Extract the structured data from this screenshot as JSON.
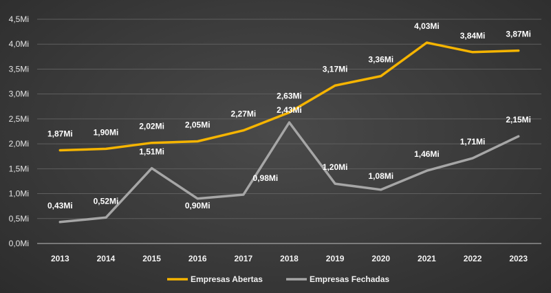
{
  "chart_data": {
    "type": "line",
    "title": "",
    "xlabel": "",
    "ylabel": "",
    "categories": [
      "2013",
      "2014",
      "2015",
      "2016",
      "2017",
      "2018",
      "2019",
      "2020",
      "2021",
      "2022",
      "2023"
    ],
    "ylim": [
      0,
      4.5
    ],
    "y_ticks": [
      0,
      0.5,
      1.0,
      1.5,
      2.0,
      2.5,
      3.0,
      3.5,
      4.0,
      4.5
    ],
    "y_tick_labels": [
      "0,0Mi",
      "0,5Mi",
      "1,0Mi",
      "1,5Mi",
      "2,0Mi",
      "2,5Mi",
      "3,0Mi",
      "3,5Mi",
      "4,0Mi",
      "4,5Mi"
    ],
    "grid": "horizontal",
    "legend": "bottom",
    "series": [
      {
        "name": "Empresas Abertas",
        "color": "#f5b400",
        "values": [
          1.87,
          1.9,
          2.02,
          2.05,
          2.27,
          2.63,
          3.17,
          3.36,
          4.03,
          3.84,
          3.87
        ],
        "labels": [
          "1,87Mi",
          "1,90Mi",
          "2,02Mi",
          "2,05Mi",
          "2,27Mi",
          "2,63Mi",
          "3,17Mi",
          "3,36Mi",
          "4,03Mi",
          "3,84Mi",
          "3,87Mi"
        ]
      },
      {
        "name": "Empresas Fechadas",
        "color": "#a6a6a6",
        "values": [
          0.43,
          0.52,
          1.51,
          0.9,
          0.98,
          2.43,
          1.2,
          1.08,
          1.46,
          1.71,
          2.15
        ],
        "labels": [
          "0,43Mi",
          "0,52Mi",
          "1,51Mi",
          "0,90Mi",
          "0,98Mi",
          "2,43Mi",
          "1,20Mi",
          "1,08Mi",
          "1,46Mi",
          "1,71Mi",
          "2,15Mi"
        ]
      }
    ]
  }
}
